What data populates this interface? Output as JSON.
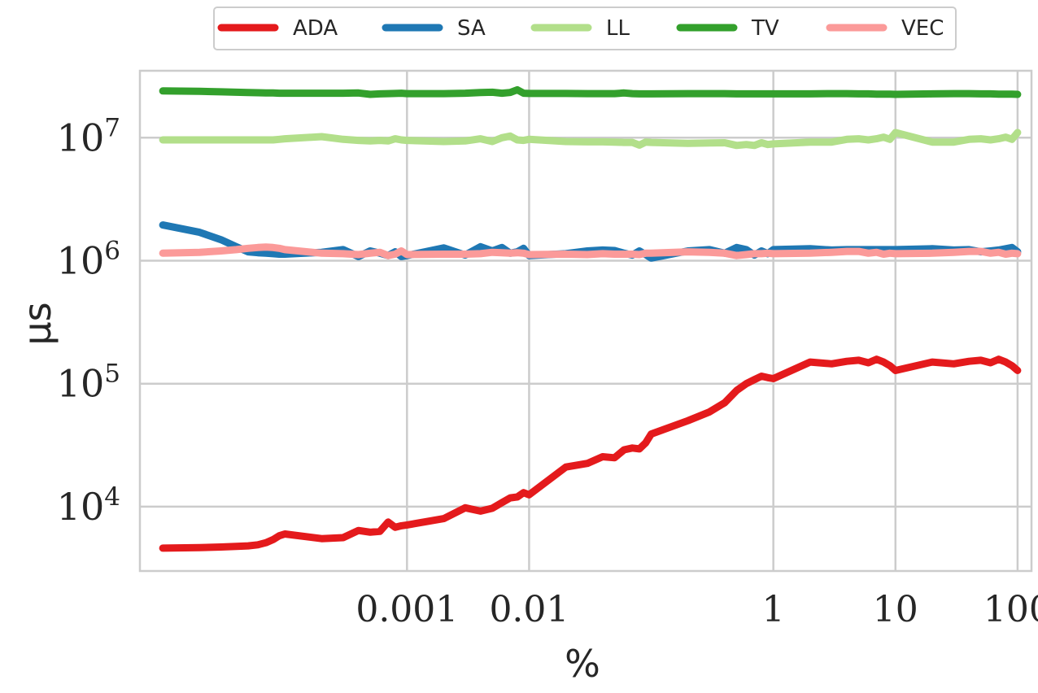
{
  "chart_data": {
    "type": "line",
    "xlabel": "%",
    "ylabel": "μs",
    "x_scale": "log",
    "y_scale": "log",
    "xlim": [
      6.5e-06,
      130
    ],
    "ylim": [
      3000,
      35000000
    ],
    "grid": true,
    "legend_position": "top-center",
    "x_ticks": [
      {
        "value": 0.001,
        "label": "0.001"
      },
      {
        "value": 0.01,
        "label": "0.01"
      },
      {
        "value": 1,
        "label": "1"
      },
      {
        "value": 10,
        "label": "10"
      },
      {
        "value": 100,
        "label": "100"
      }
    ],
    "y_ticks": [
      {
        "value": 10000,
        "base": "10",
        "exp": "4"
      },
      {
        "value": 100000,
        "base": "10",
        "exp": "5"
      },
      {
        "value": 1000000,
        "base": "10",
        "exp": "6"
      },
      {
        "value": 10000000,
        "base": "10",
        "exp": "7"
      }
    ],
    "x": [
      1e-05,
      2e-05,
      3e-05,
      4e-05,
      5e-05,
      6e-05,
      7e-05,
      8e-05,
      9e-05,
      0.0001,
      0.0002,
      0.0003,
      0.0004,
      0.0005,
      0.0006,
      0.0007,
      0.0008,
      0.0009,
      0.001,
      0.002,
      0.003,
      0.004,
      0.005,
      0.006,
      0.007,
      0.008,
      0.009,
      0.01,
      0.02,
      0.03,
      0.04,
      0.05,
      0.06,
      0.07,
      0.08,
      0.09,
      0.1,
      0.2,
      0.3,
      0.4,
      0.5,
      0.6,
      0.7,
      0.8,
      0.9,
      1,
      2,
      3,
      4,
      5,
      6,
      7,
      8,
      9,
      10,
      20,
      30,
      40,
      50,
      60,
      70,
      80,
      90,
      100
    ],
    "series": [
      {
        "name": "ADA",
        "color": "#e41a1c",
        "values": [
          4600,
          4650,
          4700,
          4750,
          4800,
          4900,
          5100,
          5400,
          5800,
          6000,
          5500,
          5600,
          6400,
          6200,
          6300,
          7500,
          6800,
          7000,
          7100,
          8000,
          9800,
          9200,
          9700,
          10800,
          11800,
          12000,
          13000,
          12500,
          21000,
          22500,
          25500,
          25000,
          29000,
          30000,
          29500,
          33000,
          39000,
          50000,
          59000,
          70000,
          88000,
          100000,
          108000,
          115000,
          112000,
          110000,
          150000,
          145000,
          152000,
          155000,
          148000,
          158000,
          150000,
          140000,
          128000,
          150000,
          145000,
          152000,
          155000,
          148000,
          158000,
          150000,
          140000,
          128000
        ]
      },
      {
        "name": "SA",
        "color": "#1f78b4",
        "values": [
          1950000,
          1700000,
          1480000,
          1300000,
          1180000,
          1160000,
          1150000,
          1140000,
          1130000,
          1130000,
          1170000,
          1230000,
          1080000,
          1200000,
          1150000,
          1100000,
          1180000,
          1080000,
          1100000,
          1270000,
          1110000,
          1300000,
          1200000,
          1280000,
          1150000,
          1180000,
          1260000,
          1100000,
          1140000,
          1200000,
          1220000,
          1210000,
          1150000,
          1110000,
          1200000,
          1120000,
          1050000,
          1200000,
          1230000,
          1150000,
          1280000,
          1230000,
          1110000,
          1200000,
          1140000,
          1230000,
          1250000,
          1220000,
          1230000,
          1230000,
          1230000,
          1230000,
          1230000,
          1230000,
          1230000,
          1250000,
          1220000,
          1230000,
          1180000,
          1200000,
          1220000,
          1250000,
          1280000,
          1180000
        ]
      },
      {
        "name": "LL",
        "color": "#b2df8a",
        "values": [
          9600000,
          9600000,
          9600000,
          9600000,
          9600000,
          9600000,
          9600000,
          9600000,
          9700000,
          9800000,
          10200000,
          9700000,
          9500000,
          9400000,
          9500000,
          9400000,
          9800000,
          9600000,
          9500000,
          9300000,
          9400000,
          9800000,
          9300000,
          10000000,
          10300000,
          9600000,
          9500000,
          9700000,
          9300000,
          9250000,
          9250000,
          9200000,
          9150000,
          9150000,
          8700000,
          9200000,
          9150000,
          9000000,
          9050000,
          9100000,
          8650000,
          8800000,
          8650000,
          9100000,
          8800000,
          8900000,
          9200000,
          9200000,
          9700000,
          9800000,
          9600000,
          9800000,
          10100000,
          9700000,
          11000000,
          9200000,
          9200000,
          9700000,
          9800000,
          9600000,
          9800000,
          10100000,
          9700000,
          11000000
        ]
      },
      {
        "name": "TV",
        "color": "#33a02c",
        "values": [
          24000000,
          23800000,
          23600000,
          23400000,
          23300000,
          23200000,
          23100000,
          23100000,
          23000000,
          23000000,
          23000000,
          23000000,
          23100000,
          22500000,
          22700000,
          22800000,
          22900000,
          23000000,
          22800000,
          22800000,
          23000000,
          23300000,
          23400000,
          23000000,
          23300000,
          24500000,
          23000000,
          22900000,
          22900000,
          22800000,
          22800000,
          22800000,
          23100000,
          22800000,
          22700000,
          22700000,
          22700000,
          22800000,
          22800000,
          22800000,
          22700000,
          22700000,
          22700000,
          22700000,
          22700000,
          22700000,
          22700000,
          22800000,
          22800000,
          22700000,
          22700000,
          22600000,
          22600000,
          22600000,
          22500000,
          22700000,
          22800000,
          22800000,
          22700000,
          22700000,
          22600000,
          22600000,
          22600000,
          22500000
        ]
      },
      {
        "name": "VEC",
        "color": "#fb9a99",
        "values": [
          1150000,
          1170000,
          1200000,
          1230000,
          1260000,
          1280000,
          1290000,
          1280000,
          1260000,
          1230000,
          1150000,
          1140000,
          1120000,
          1150000,
          1170000,
          1100000,
          1130000,
          1200000,
          1120000,
          1130000,
          1130000,
          1140000,
          1170000,
          1160000,
          1150000,
          1160000,
          1150000,
          1120000,
          1130000,
          1120000,
          1140000,
          1130000,
          1130000,
          1130000,
          1120000,
          1150000,
          1150000,
          1180000,
          1170000,
          1150000,
          1100000,
          1120000,
          1140000,
          1140000,
          1150000,
          1140000,
          1150000,
          1170000,
          1190000,
          1190000,
          1150000,
          1170000,
          1130000,
          1150000,
          1140000,
          1150000,
          1170000,
          1190000,
          1190000,
          1150000,
          1170000,
          1130000,
          1150000,
          1140000
        ]
      }
    ]
  }
}
